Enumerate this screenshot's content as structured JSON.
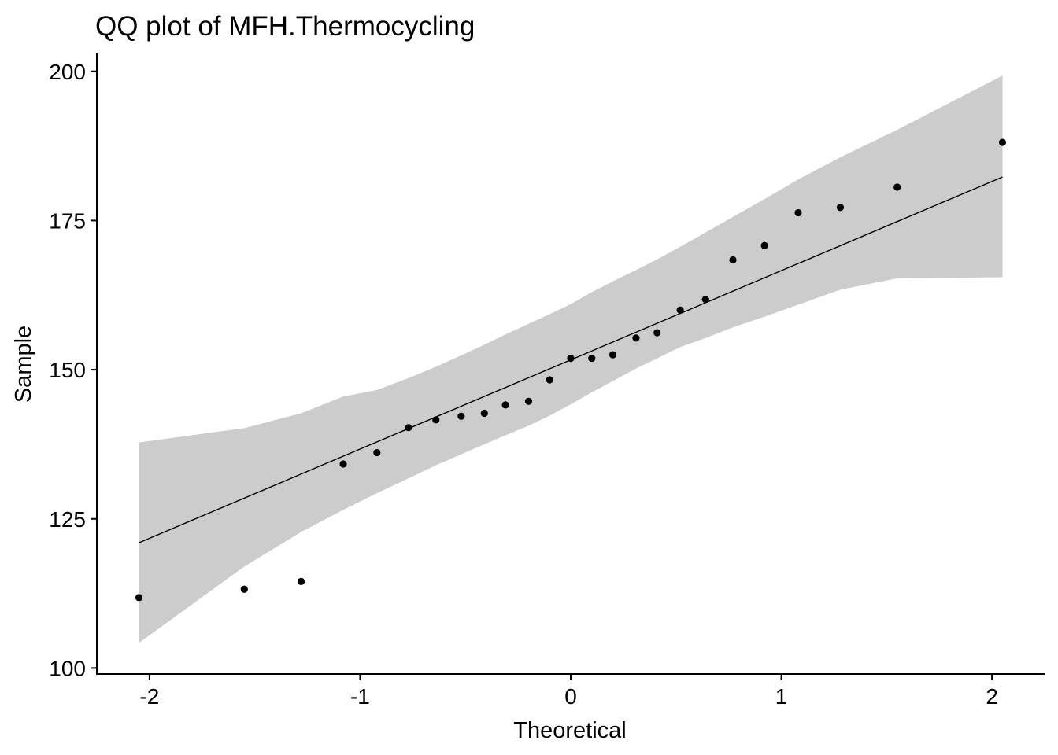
{
  "chart_data": {
    "type": "scatter",
    "title": "QQ plot of MFH.Thermocycling",
    "xlabel": "Theoretical",
    "ylabel": "Sample",
    "xlim": [
      -2.25,
      2.25
    ],
    "ylim": [
      99,
      203
    ],
    "x_ticks": [
      -2,
      -1,
      0,
      1,
      2
    ],
    "x_tick_labels": [
      "-2",
      "-1",
      "0",
      "1",
      "2"
    ],
    "y_ticks": [
      100,
      125,
      150,
      175,
      200
    ],
    "y_tick_labels": [
      "100",
      "125",
      "150",
      "175",
      "200"
    ],
    "grid": false,
    "legend": "none",
    "colors": {
      "points": "#000000",
      "reference_line": "#000000",
      "confidence_band": "#cccccc",
      "axis": "#000000"
    },
    "points": [
      {
        "x": -2.05,
        "y": 111.8
      },
      {
        "x": -1.55,
        "y": 113.2
      },
      {
        "x": -1.28,
        "y": 114.5
      },
      {
        "x": -1.08,
        "y": 134.2
      },
      {
        "x": -0.92,
        "y": 136.1
      },
      {
        "x": -0.77,
        "y": 140.3
      },
      {
        "x": -0.64,
        "y": 141.6
      },
      {
        "x": -0.52,
        "y": 142.2
      },
      {
        "x": -0.41,
        "y": 142.7
      },
      {
        "x": -0.31,
        "y": 144.1
      },
      {
        "x": -0.2,
        "y": 144.7
      },
      {
        "x": -0.1,
        "y": 148.3
      },
      {
        "x": 0.0,
        "y": 151.9
      },
      {
        "x": 0.1,
        "y": 151.9
      },
      {
        "x": 0.2,
        "y": 152.5
      },
      {
        "x": 0.31,
        "y": 155.3
      },
      {
        "x": 0.41,
        "y": 156.2
      },
      {
        "x": 0.52,
        "y": 160.0
      },
      {
        "x": 0.64,
        "y": 161.8
      },
      {
        "x": 0.77,
        "y": 168.4
      },
      {
        "x": 0.92,
        "y": 170.8
      },
      {
        "x": 1.08,
        "y": 176.3
      },
      {
        "x": 1.28,
        "y": 177.2
      },
      {
        "x": 1.55,
        "y": 180.6
      },
      {
        "x": 2.05,
        "y": 188.1
      }
    ],
    "reference_line": {
      "x": [
        -2.05,
        2.05
      ],
      "y": [
        121.0,
        182.3
      ]
    },
    "confidence_band": {
      "x": [
        -2.05,
        -1.55,
        -1.28,
        -1.08,
        -0.92,
        -0.77,
        -0.64,
        -0.52,
        -0.41,
        -0.31,
        -0.2,
        -0.1,
        0.0,
        0.1,
        0.2,
        0.31,
        0.41,
        0.52,
        0.64,
        0.77,
        0.92,
        1.08,
        1.28,
        1.55,
        2.05
      ],
      "lower": [
        104.2,
        117.0,
        122.8,
        126.5,
        129.3,
        131.8,
        134.0,
        135.8,
        137.5,
        139.0,
        140.6,
        142.3,
        144.2,
        146.2,
        148.1,
        150.2,
        151.9,
        153.8,
        155.3,
        157.1,
        158.9,
        160.9,
        163.4,
        165.3,
        165.5
      ],
      "upper": [
        137.8,
        140.2,
        142.7,
        145.5,
        146.6,
        148.6,
        150.5,
        152.4,
        154.2,
        155.9,
        157.7,
        159.3,
        161.0,
        163.0,
        164.8,
        166.7,
        168.5,
        170.6,
        173.0,
        175.6,
        178.6,
        181.9,
        185.6,
        190.2,
        199.3
      ]
    }
  }
}
